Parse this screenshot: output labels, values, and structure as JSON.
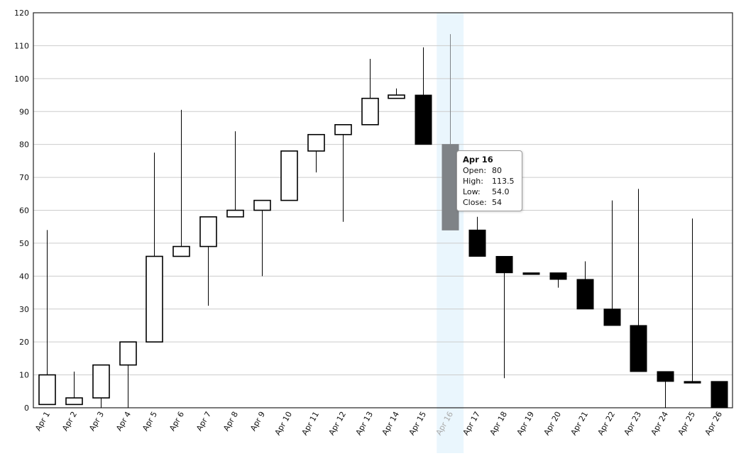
{
  "chart_data": {
    "type": "candlestick",
    "ylim": [
      0,
      120
    ],
    "y_ticks": [
      0,
      10,
      20,
      30,
      40,
      50,
      60,
      70,
      80,
      90,
      100,
      110,
      120
    ],
    "grid": true,
    "highlighted_category": "Apr 16",
    "candles": [
      {
        "date": "Apr 1",
        "open": 1,
        "high": 54,
        "low": 1,
        "close": 10
      },
      {
        "date": "Apr 2",
        "open": 1,
        "high": 11,
        "low": 1,
        "close": 3
      },
      {
        "date": "Apr 3",
        "open": 3,
        "high": 13,
        "low": 0,
        "close": 13
      },
      {
        "date": "Apr 4",
        "open": 13,
        "high": 20,
        "low": 0,
        "close": 20
      },
      {
        "date": "Apr 5",
        "open": 20,
        "high": 77.5,
        "low": 20,
        "close": 46
      },
      {
        "date": "Apr 6",
        "open": 46,
        "high": 90.5,
        "low": 46,
        "close": 49
      },
      {
        "date": "Apr 7",
        "open": 49,
        "high": 58,
        "low": 31,
        "close": 58
      },
      {
        "date": "Apr 8",
        "open": 58,
        "high": 84,
        "low": 58,
        "close": 60
      },
      {
        "date": "Apr 9",
        "open": 60,
        "high": 63,
        "low": 40,
        "close": 63
      },
      {
        "date": "Apr 10",
        "open": 63,
        "high": 78,
        "low": 63,
        "close": 78
      },
      {
        "date": "Apr 11",
        "open": 78,
        "high": 83,
        "low": 71.5,
        "close": 83
      },
      {
        "date": "Apr 12",
        "open": 83,
        "high": 86,
        "low": 56.5,
        "close": 86
      },
      {
        "date": "Apr 13",
        "open": 86,
        "high": 106,
        "low": 86,
        "close": 94
      },
      {
        "date": "Apr 14",
        "open": 94,
        "high": 97,
        "low": 94,
        "close": 95
      },
      {
        "date": "Apr 15",
        "open": 95,
        "high": 109.5,
        "low": 80,
        "close": 80
      },
      {
        "date": "Apr 16",
        "open": 80,
        "high": 113.5,
        "low": 54,
        "close": 54
      },
      {
        "date": "Apr 17",
        "open": 54,
        "high": 58,
        "low": 46,
        "close": 46
      },
      {
        "date": "Apr 18",
        "open": 46,
        "high": 46,
        "low": 9,
        "close": 41
      },
      {
        "date": "Apr 19",
        "open": 41,
        "high": 41,
        "low": 40.5,
        "close": 40.5
      },
      {
        "date": "Apr 20",
        "open": 41,
        "high": 41,
        "low": 36.5,
        "close": 39
      },
      {
        "date": "Apr 21",
        "open": 39,
        "high": 44.5,
        "low": 30,
        "close": 30
      },
      {
        "date": "Apr 22",
        "open": 30,
        "high": 63,
        "low": 25,
        "close": 25
      },
      {
        "date": "Apr 23",
        "open": 25,
        "high": 66.5,
        "low": 11,
        "close": 11
      },
      {
        "date": "Apr 24",
        "open": 11,
        "high": 11,
        "low": 0,
        "close": 8
      },
      {
        "date": "Apr 25",
        "open": 8,
        "high": 57.5,
        "low": 7.5,
        "close": 7.5
      },
      {
        "date": "Apr 26",
        "open": 8,
        "high": 8,
        "low": 0,
        "close": 0
      }
    ]
  },
  "tooltip": {
    "title": "Apr 16",
    "open_label": "Open:",
    "open_value": "80",
    "high_label": "High:",
    "high_value": "113.5",
    "low_label": "Low:",
    "low_value": "54.0",
    "close_label": "Close:",
    "close_value": "54"
  },
  "colors": {
    "rising_fill": "#ffffff",
    "falling_fill": "#000000",
    "highlight_fill": "#7f8387",
    "hover_band": "#eaf6fd",
    "gridline": "#cccccc",
    "axis_text": "#111111",
    "highlighted_label": "#aaaaaa"
  }
}
